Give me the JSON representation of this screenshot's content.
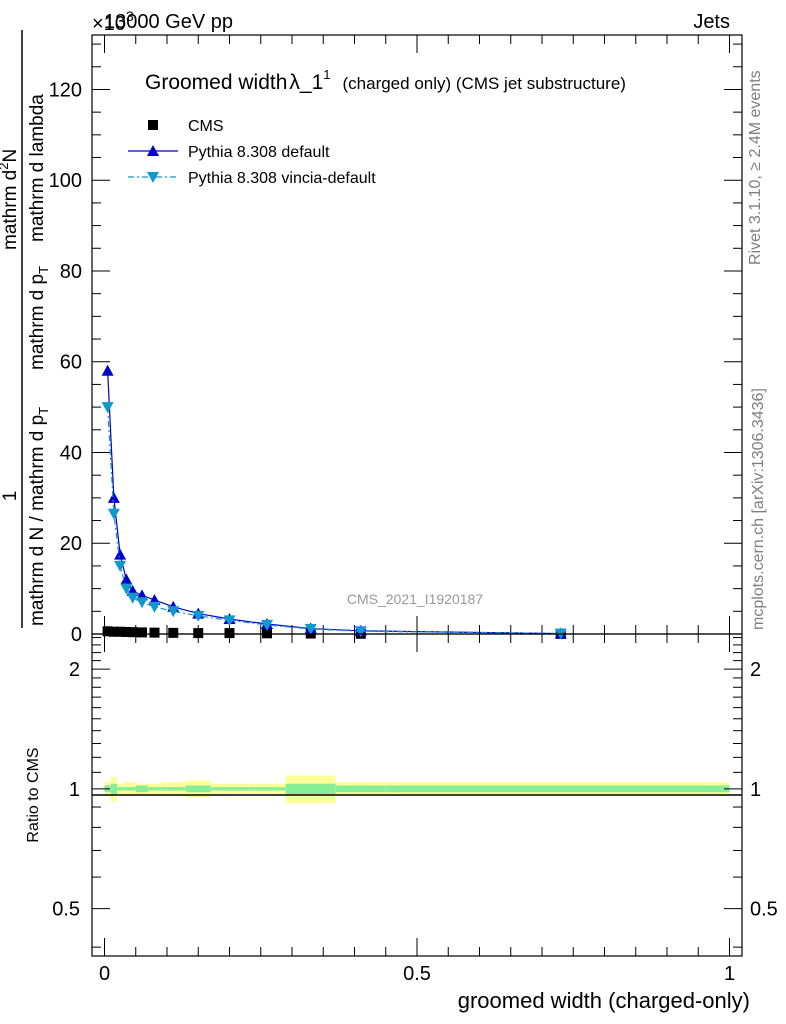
{
  "header": {
    "energy": "13000 GeV pp",
    "category": "Jets",
    "multiplier": "×10",
    "multiplier_exp": "3"
  },
  "side_text": {
    "rivet": "Rivet 3.1.10, ≥ 2.4M events",
    "mcplots": "mcplots.cern.ch [arXiv:1306.3436]"
  },
  "analysis_id": "CMS_2021_I1920187",
  "chart_data": [
    {
      "type": "line",
      "title": "Groomed width",
      "title_symbol": "λ_1",
      "title_sup": "1",
      "title_note": "(charged only) (CMS jet substructure)",
      "ylabel_numerator": "1",
      "ylabel_lines": [
        "mathrm d N / mathrm d p",
        "mathrm d p",
        "mathrm d lambda"
      ],
      "ylabel_top_numerator": "mathrm d",
      "ylabel_top_sup": "2",
      "ylabel_top_N": "N",
      "ylabel_sub": "T",
      "xlim": [
        -0.02,
        1.02
      ],
      "ylim": [
        0,
        132
      ],
      "yticks": [
        0,
        20,
        40,
        60,
        80,
        100,
        120
      ],
      "legend_position": "top-left",
      "series": [
        {
          "name": "CMS",
          "color": "#000000",
          "marker": "square",
          "x": [
            0.005,
            0.015,
            0.025,
            0.035,
            0.045,
            0.06,
            0.08,
            0.11,
            0.15,
            0.2,
            0.26,
            0.33,
            0.41,
            0.73
          ],
          "y": [
            0.6,
            0.5,
            0.5,
            0.45,
            0.4,
            0.35,
            0.3,
            0.25,
            0.2,
            0.2,
            0.15,
            0.1,
            0.05,
            0.02
          ]
        },
        {
          "name": "Pythia 8.308 default",
          "color": "#0000cc",
          "marker": "triangle-up",
          "line": "solid",
          "x": [
            0.005,
            0.015,
            0.025,
            0.035,
            0.045,
            0.06,
            0.08,
            0.11,
            0.15,
            0.2,
            0.26,
            0.33,
            0.41,
            0.73
          ],
          "y": [
            58,
            30,
            17.5,
            12,
            9.5,
            8.5,
            7.5,
            6,
            4.5,
            3.3,
            2.2,
            1.2,
            0.7,
            0.1
          ]
        },
        {
          "name": "Pythia 8.308 vincia-default",
          "color": "#1199cc",
          "marker": "triangle-down",
          "line": "dash-dot",
          "x": [
            0.005,
            0.015,
            0.025,
            0.035,
            0.045,
            0.06,
            0.08,
            0.11,
            0.15,
            0.2,
            0.26,
            0.33,
            0.41,
            0.73
          ],
          "y": [
            50,
            26.5,
            15,
            10,
            8,
            7,
            6,
            5,
            4,
            3,
            2,
            1.1,
            0.6,
            0.1
          ]
        }
      ]
    },
    {
      "type": "area",
      "ylabel": "Ratio to CMS",
      "xlabel": "groomed width (charged-only)",
      "xlim": [
        -0.02,
        1.02
      ],
      "ylim": [
        0.38,
        2.45
      ],
      "yscale": "log",
      "yticks": [
        0.5,
        1,
        2
      ],
      "xticks": [
        0,
        0.5,
        1
      ],
      "xtick_labels": [
        "0",
        "0.5",
        "1"
      ],
      "ytick_labels": [
        "0.5",
        "1",
        "2"
      ],
      "bands": {
        "edges": [
          0,
          0.01,
          0.02,
          0.03,
          0.05,
          0.07,
          0.09,
          0.13,
          0.17,
          0.23,
          0.29,
          0.37,
          0.45,
          1.0
        ],
        "stat_low": [
          0.98,
          0.97,
          0.99,
          0.99,
          0.98,
          0.99,
          0.99,
          0.98,
          0.99,
          0.99,
          0.97,
          0.98,
          0.98
        ],
        "stat_high": [
          1.02,
          1.03,
          1.01,
          1.01,
          1.02,
          1.01,
          1.01,
          1.02,
          1.01,
          1.01,
          1.03,
          1.02,
          1.02
        ],
        "tot_low": [
          0.96,
          0.93,
          0.97,
          0.96,
          0.97,
          0.97,
          0.96,
          0.95,
          0.97,
          0.97,
          0.92,
          0.96,
          0.96
        ],
        "tot_high": [
          1.04,
          1.07,
          1.03,
          1.04,
          1.03,
          1.03,
          1.04,
          1.05,
          1.03,
          1.03,
          1.08,
          1.04,
          1.04
        ],
        "stat_color": "#88ee99",
        "tot_color": "#ffff99"
      }
    }
  ]
}
